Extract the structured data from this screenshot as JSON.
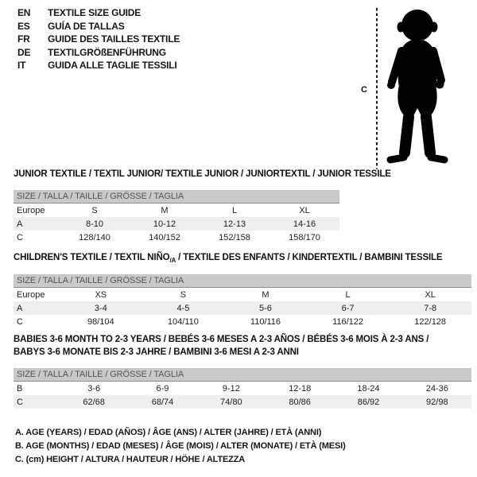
{
  "colors": {
    "bar_bg": "#c9c9c9",
    "bar_text": "#555555",
    "shaded_row_bg": "#efefef",
    "text": "#161616",
    "silhouette": "#000000"
  },
  "languages": [
    {
      "code": "EN",
      "title": "TEXTILE SIZE GUIDE"
    },
    {
      "code": "ES",
      "title": "GUÍA DE TALLAS"
    },
    {
      "code": "FR",
      "title": "GUIDE DES TAILLES TEXTILE"
    },
    {
      "code": "DE",
      "title": "TEXTILGRÖßENFÜHRUNG"
    },
    {
      "code": "IT",
      "title": "GUIDA ALLE TAGLIE TESSILI"
    }
  ],
  "figure": {
    "measure_label": "C"
  },
  "size_header": "SIZE / TALLA / TAILLE / GRÖSSE / TAGLIA",
  "tables": [
    {
      "id": "junior",
      "title_lines": [
        [
          {
            "t": "JUNIOR TEXTILE / TEXTIL JUNIOR/ TEXTILE JUNIOR / JUNIORTEXTIL / JUNIOR TESSILE"
          }
        ]
      ],
      "rows": [
        {
          "label": "Europe",
          "values": [
            "S",
            "M",
            "L",
            "XL"
          ],
          "shaded": false
        },
        {
          "label": "A",
          "values": [
            "8-10",
            "10-12",
            "12-13",
            "14-16"
          ],
          "shaded": true
        },
        {
          "label": "C",
          "values": [
            "128/140",
            "140/152",
            "152/158",
            "158/170"
          ],
          "shaded": false
        }
      ]
    },
    {
      "id": "children",
      "title_lines": [
        [
          {
            "t": "CHILDREN'S TEXTILE / TEXTIL NIÑO"
          },
          {
            "t": "/A",
            "sub": true
          },
          {
            "t": " / TEXTILE DES ENFANTS / KINDERTEXTIL / BAMBINI TESSILE"
          }
        ]
      ],
      "rows": [
        {
          "label": "Europe",
          "values": [
            "XS",
            "S",
            "M",
            "L",
            "XL"
          ],
          "shaded": false
        },
        {
          "label": "A",
          "values": [
            "3-4",
            "4-5",
            "5-6",
            "6-7",
            "7-8"
          ],
          "shaded": true
        },
        {
          "label": "C",
          "values": [
            "98/104",
            "104/110",
            "110/116",
            "116/122",
            "122/128"
          ],
          "shaded": false
        }
      ]
    },
    {
      "id": "babies",
      "title_lines": [
        [
          {
            "t": "BABIES 3-6 MONTH TO 2-3 YEARS / BEBÉS 3-6 MESES A 2-3 AÑOS / BÉBÉS 3-6 MOIS À 2-3 ANS /"
          }
        ],
        [
          {
            "t": "BABYS 3-6 MONATE BIS 2-3 JAHRE / BAMBINI 3-6 MESI A 2-3 ANNI"
          }
        ]
      ],
      "rows": [
        {
          "label": "B",
          "values": [
            "3-6",
            "6-9",
            "9-12",
            "12-18",
            "18-24",
            "24-36"
          ],
          "shaded": false
        },
        {
          "label": "C",
          "values": [
            "62/68",
            "68/74",
            "74/80",
            "80/86",
            "86/92",
            "92/98"
          ],
          "shaded": true
        }
      ]
    }
  ],
  "footnotes": [
    "A. AGE (YEARS) / EDAD (AÑOS) / ÂGE (ANS) / ALTER (JAHRE) / ETÀ (ANNI)",
    "B. AGE (MONTHS) / EDAD (MESES) / ÂGE (MOIS) / ALTER (MONATE) / ETÀ (MESI)",
    "C. (cm) HEIGHT / ALTURA / HAUTEUR / HÖHE / ALTEZZA"
  ]
}
